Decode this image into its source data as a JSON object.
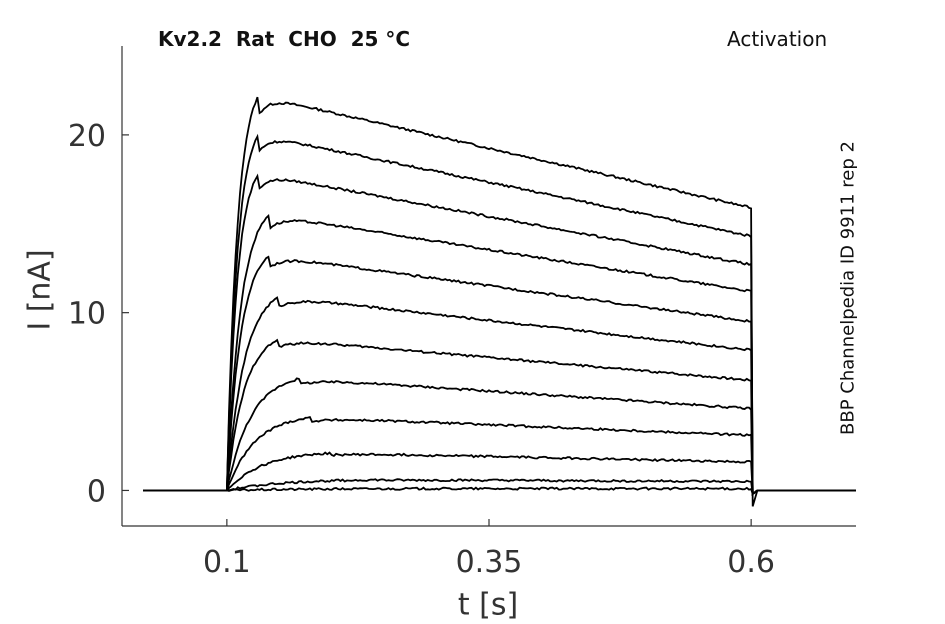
{
  "chart_data": {
    "type": "line",
    "title": "Kv2.2  Rat  CHO  25 °C",
    "protocol_label": "Activation",
    "side_label": "BBP Channelpedia ID 9911 rep 2",
    "xlabel": "t [s]",
    "ylabel": "I [nA]",
    "xlim": [
      0.0,
      0.7
    ],
    "ylim": [
      -2.0,
      25.0
    ],
    "xticks": [
      {
        "value": 0.1,
        "label": "0.1"
      },
      {
        "value": 0.35,
        "label": "0.35"
      },
      {
        "value": 0.6,
        "label": "0.6"
      }
    ],
    "yticks": [
      {
        "value": 0,
        "label": "0"
      },
      {
        "value": 10,
        "label": "10"
      },
      {
        "value": 20,
        "label": "20"
      }
    ],
    "grid": false,
    "line_color": "#000000",
    "stimulus_window": [
      0.1,
      0.6
    ],
    "series": [
      {
        "values": [
          [
            0.0,
            0.0
          ],
          [
            0.1,
            0.0
          ],
          [
            0.13,
            22.2
          ],
          [
            0.35,
            18.8
          ],
          [
            0.6,
            15.9
          ],
          [
            0.7,
            0.0
          ]
        ]
      },
      {
        "values": [
          [
            0.0,
            0.0
          ],
          [
            0.1,
            0.0
          ],
          [
            0.13,
            20.0
          ],
          [
            0.35,
            17.0
          ],
          [
            0.6,
            14.3
          ],
          [
            0.7,
            0.0
          ]
        ]
      },
      {
        "values": [
          [
            0.0,
            0.0
          ],
          [
            0.1,
            0.0
          ],
          [
            0.13,
            17.8
          ],
          [
            0.35,
            15.2
          ],
          [
            0.6,
            12.7
          ],
          [
            0.7,
            0.0
          ]
        ]
      },
      {
        "values": [
          [
            0.0,
            0.0
          ],
          [
            0.1,
            0.0
          ],
          [
            0.14,
            15.5
          ],
          [
            0.35,
            13.5
          ],
          [
            0.6,
            11.2
          ],
          [
            0.7,
            0.0
          ]
        ]
      },
      {
        "values": [
          [
            0.0,
            0.0
          ],
          [
            0.1,
            0.0
          ],
          [
            0.14,
            13.2
          ],
          [
            0.35,
            11.6
          ],
          [
            0.6,
            9.5
          ],
          [
            0.7,
            0.0
          ]
        ]
      },
      {
        "values": [
          [
            0.0,
            0.0
          ],
          [
            0.1,
            0.0
          ],
          [
            0.15,
            10.9
          ],
          [
            0.35,
            9.9
          ],
          [
            0.6,
            7.9
          ],
          [
            0.7,
            0.0
          ]
        ]
      },
      {
        "values": [
          [
            0.0,
            0.0
          ],
          [
            0.1,
            0.0
          ],
          [
            0.15,
            8.5
          ],
          [
            0.35,
            7.8
          ],
          [
            0.6,
            6.2
          ],
          [
            0.7,
            0.0
          ]
        ]
      },
      {
        "values": [
          [
            0.0,
            0.0
          ],
          [
            0.1,
            0.0
          ],
          [
            0.17,
            6.3
          ],
          [
            0.35,
            5.8
          ],
          [
            0.6,
            4.6
          ],
          [
            0.7,
            0.0
          ]
        ]
      },
      {
        "values": [
          [
            0.0,
            0.0
          ],
          [
            0.1,
            0.0
          ],
          [
            0.18,
            4.1
          ],
          [
            0.35,
            3.9
          ],
          [
            0.6,
            3.1
          ],
          [
            0.7,
            0.0
          ]
        ]
      },
      {
        "values": [
          [
            0.0,
            0.0
          ],
          [
            0.1,
            0.0
          ],
          [
            0.2,
            2.1
          ],
          [
            0.35,
            2.0
          ],
          [
            0.6,
            1.6
          ],
          [
            0.7,
            0.0
          ]
        ]
      },
      {
        "values": [
          [
            0.0,
            0.0
          ],
          [
            0.1,
            0.0
          ],
          [
            0.25,
            0.6
          ],
          [
            0.35,
            0.6
          ],
          [
            0.6,
            0.5
          ],
          [
            0.7,
            0.0
          ]
        ]
      },
      {
        "values": [
          [
            0.0,
            0.0
          ],
          [
            0.1,
            0.0
          ],
          [
            0.3,
            0.1
          ],
          [
            0.6,
            0.1
          ],
          [
            0.7,
            0.0
          ]
        ]
      }
    ]
  }
}
